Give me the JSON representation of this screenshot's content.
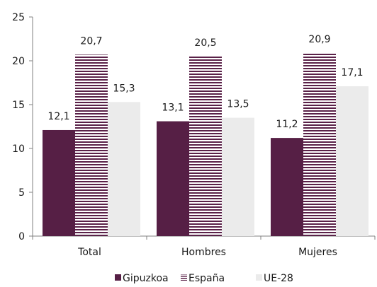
{
  "chart_data": {
    "type": "bar",
    "categories": [
      "Total",
      "Hombres",
      "Mujeres"
    ],
    "series": [
      {
        "name": "Gipuzkoa",
        "values": [
          12.1,
          13.1,
          11.2
        ],
        "color": "#561f45",
        "pattern": "solid"
      },
      {
        "name": "España",
        "values": [
          20.7,
          20.5,
          20.9
        ],
        "color": "#5a2148",
        "pattern": "horizontal-stripes"
      },
      {
        "name": "UE-28",
        "values": [
          15.3,
          13.5,
          17.1
        ],
        "color": "#ebebeb",
        "pattern": "solid"
      }
    ],
    "value_labels": [
      [
        "12,1",
        "13,1",
        "11,2"
      ],
      [
        "20,7",
        "20,5",
        "20,9"
      ],
      [
        "15,3",
        "13,5",
        "17,1"
      ]
    ],
    "y_ticks": [
      0,
      5,
      10,
      15,
      20,
      25
    ],
    "y_tick_labels": [
      "0",
      "5",
      "10",
      "15",
      "20",
      "25"
    ],
    "ylim": [
      0,
      25
    ],
    "grid": false,
    "legend_position": "bottom-center"
  }
}
